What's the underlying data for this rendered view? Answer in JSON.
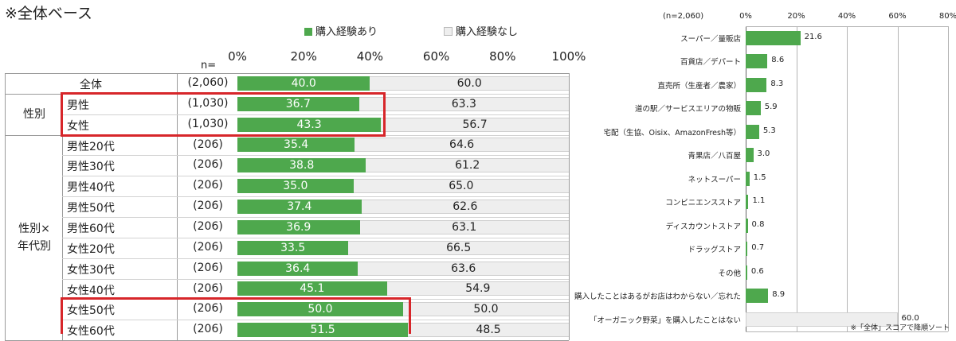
{
  "header_note": "※全体ベース",
  "footnote": "※「全体」スコアで降順ソート",
  "left_chart": {
    "type": "bar",
    "stacked": true,
    "orientation": "horizontal",
    "n_label": "n=",
    "ticks": [
      "0%",
      "20%",
      "40%",
      "60%",
      "80%",
      "100%"
    ],
    "xlim": [
      0,
      100
    ],
    "colors": {
      "yes": "#4ea84d",
      "no": "#eeeeee",
      "highlight": "#d7262a"
    },
    "series": [
      {
        "name": "購入経験あり",
        "key": "yes"
      },
      {
        "name": "購入経験なし",
        "key": "no"
      }
    ],
    "groups": [
      {
        "label": "",
        "rows": [
          {
            "category": "全体",
            "n": "(2,060)",
            "yes": 40.0,
            "no": 60.0
          }
        ]
      },
      {
        "label": "性別",
        "rows": [
          {
            "category": "男性",
            "n": "(1,030)",
            "yes": 36.7,
            "no": 63.3
          },
          {
            "category": "女性",
            "n": "(1,030)",
            "yes": 43.3,
            "no": 56.7
          }
        ]
      },
      {
        "label": "性別×\n年代別",
        "rows": [
          {
            "category": "男性20代",
            "n": "(206)",
            "yes": 35.4,
            "no": 64.6
          },
          {
            "category": "男性30代",
            "n": "(206)",
            "yes": 38.8,
            "no": 61.2
          },
          {
            "category": "男性40代",
            "n": "(206)",
            "yes": 35.0,
            "no": 65.0
          },
          {
            "category": "男性50代",
            "n": "(206)",
            "yes": 37.4,
            "no": 62.6
          },
          {
            "category": "男性60代",
            "n": "(206)",
            "yes": 36.9,
            "no": 63.1
          },
          {
            "category": "女性20代",
            "n": "(206)",
            "yes": 33.5,
            "no": 66.5
          },
          {
            "category": "女性30代",
            "n": "(206)",
            "yes": 36.4,
            "no": 63.6
          },
          {
            "category": "女性40代",
            "n": "(206)",
            "yes": 45.1,
            "no": 54.9
          },
          {
            "category": "女性50代",
            "n": "(206)",
            "yes": 50.0,
            "no": 50.0
          },
          {
            "category": "女性60代",
            "n": "(206)",
            "yes": 51.5,
            "no": 48.5
          }
        ]
      }
    ]
  },
  "right_chart": {
    "type": "bar",
    "orientation": "horizontal",
    "n_label": "(n=2,060)",
    "ticks": [
      "0%",
      "20%",
      "40%",
      "60%",
      "80%"
    ],
    "xlim": [
      0,
      80
    ],
    "colors": {
      "bar": "#4ea84d",
      "none_bar": "#eeeeee"
    },
    "categories": [
      "スーパー／量販店",
      "百貨店／デパート",
      "直売所（生産者／農家）",
      "道の駅／サービスエリアの物販",
      "宅配（生協、Oisix、AmazonFresh等）",
      "青果店／八百屋",
      "ネットスーパー",
      "コンビニエンスストア",
      "ディスカウントストア",
      "ドラッグストア",
      "その他",
      "購入したことはあるがお店はわからない／忘れた",
      "「オーガニック野菜」を購入したことはない"
    ],
    "values": [
      21.6,
      8.6,
      8.3,
      5.9,
      5.3,
      3.0,
      1.5,
      1.1,
      0.8,
      0.7,
      0.6,
      8.9,
      60.0
    ],
    "value_labels": [
      "21.6",
      "8.6",
      "8.3",
      "5.9",
      "5.3",
      "3.0",
      "1.5",
      "1.1",
      "0.8",
      "0.7",
      "0.6",
      "8.9",
      "60.0"
    ]
  }
}
